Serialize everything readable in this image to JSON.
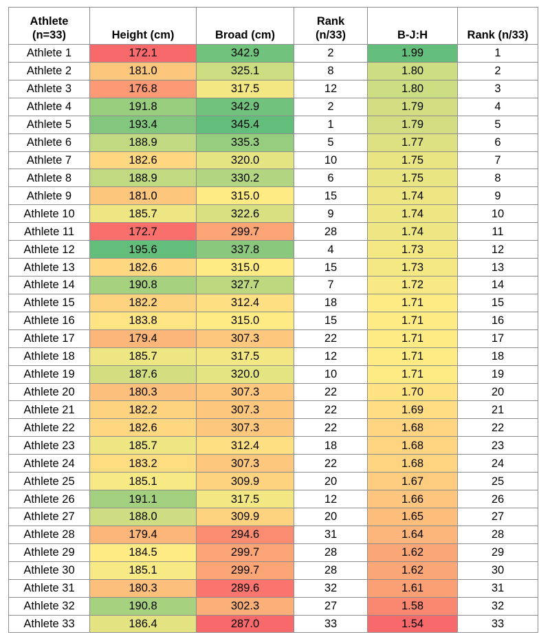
{
  "chart_data": {
    "type": "table",
    "columns": [
      "Athlete\n(n=33)",
      "Height (cm)",
      "Broad (cm)",
      "Rank\n(n/33)",
      "B-J:H",
      "Rank (n/33)"
    ],
    "column_headers": {
      "athlete": [
        "Athlete",
        "(n=33)"
      ],
      "height": "Height (cm)",
      "broad": "Broad (cm)",
      "rank1": [
        "Rank",
        "(n/33)"
      ],
      "ratio": "B-J:H",
      "rank2": "Rank (n/33)"
    },
    "rows": [
      {
        "athlete": "Athlete 1",
        "height": "172.1",
        "broad": "342.9",
        "rank1": "2",
        "ratio": "1.99",
        "rank2": "1"
      },
      {
        "athlete": "Athlete 2",
        "height": "181.0",
        "broad": "325.1",
        "rank1": "8",
        "ratio": "1.80",
        "rank2": "2"
      },
      {
        "athlete": "Athlete 3",
        "height": "176.8",
        "broad": "317.5",
        "rank1": "12",
        "ratio": "1.80",
        "rank2": "3"
      },
      {
        "athlete": "Athlete 4",
        "height": "191.8",
        "broad": "342.9",
        "rank1": "2",
        "ratio": "1.79",
        "rank2": "4"
      },
      {
        "athlete": "Athlete 5",
        "height": "193.4",
        "broad": "345.4",
        "rank1": "1",
        "ratio": "1.79",
        "rank2": "5"
      },
      {
        "athlete": "Athlete 6",
        "height": "188.9",
        "broad": "335.3",
        "rank1": "5",
        "ratio": "1.77",
        "rank2": "6"
      },
      {
        "athlete": "Athlete 7",
        "height": "182.6",
        "broad": "320.0",
        "rank1": "10",
        "ratio": "1.75",
        "rank2": "7"
      },
      {
        "athlete": "Athlete 8",
        "height": "188.9",
        "broad": "330.2",
        "rank1": "6",
        "ratio": "1.75",
        "rank2": "8"
      },
      {
        "athlete": "Athlete 9",
        "height": "181.0",
        "broad": "315.0",
        "rank1": "15",
        "ratio": "1.74",
        "rank2": "9"
      },
      {
        "athlete": "Athlete 10",
        "height": "185.7",
        "broad": "322.6",
        "rank1": "9",
        "ratio": "1.74",
        "rank2": "10"
      },
      {
        "athlete": "Athlete 11",
        "height": "172.7",
        "broad": "299.7",
        "rank1": "28",
        "ratio": "1.74",
        "rank2": "11"
      },
      {
        "athlete": "Athlete 12",
        "height": "195.6",
        "broad": "337.8",
        "rank1": "4",
        "ratio": "1.73",
        "rank2": "12"
      },
      {
        "athlete": "Athlete 13",
        "height": "182.6",
        "broad": "315.0",
        "rank1": "15",
        "ratio": "1.73",
        "rank2": "13"
      },
      {
        "athlete": "Athlete 14",
        "height": "190.8",
        "broad": "327.7",
        "rank1": "7",
        "ratio": "1.72",
        "rank2": "14"
      },
      {
        "athlete": "Athlete 15",
        "height": "182.2",
        "broad": "312.4",
        "rank1": "18",
        "ratio": "1.71",
        "rank2": "15"
      },
      {
        "athlete": "Athlete 16",
        "height": "183.8",
        "broad": "315.0",
        "rank1": "15",
        "ratio": "1.71",
        "rank2": "16"
      },
      {
        "athlete": "Athlete 17",
        "height": "179.4",
        "broad": "307.3",
        "rank1": "22",
        "ratio": "1.71",
        "rank2": "17"
      },
      {
        "athlete": "Athlete 18",
        "height": "185.7",
        "broad": "317.5",
        "rank1": "12",
        "ratio": "1.71",
        "rank2": "18"
      },
      {
        "athlete": "Athlete 19",
        "height": "187.6",
        "broad": "320.0",
        "rank1": "10",
        "ratio": "1.71",
        "rank2": "19"
      },
      {
        "athlete": "Athlete 20",
        "height": "180.3",
        "broad": "307.3",
        "rank1": "22",
        "ratio": "1.70",
        "rank2": "20"
      },
      {
        "athlete": "Athlete 21",
        "height": "182.2",
        "broad": "307.3",
        "rank1": "22",
        "ratio": "1.69",
        "rank2": "21"
      },
      {
        "athlete": "Athlete 22",
        "height": "182.6",
        "broad": "307.3",
        "rank1": "22",
        "ratio": "1.68",
        "rank2": "22"
      },
      {
        "athlete": "Athlete 23",
        "height": "185.7",
        "broad": "312.4",
        "rank1": "18",
        "ratio": "1.68",
        "rank2": "23"
      },
      {
        "athlete": "Athlete 24",
        "height": "183.2",
        "broad": "307.3",
        "rank1": "22",
        "ratio": "1.68",
        "rank2": "24"
      },
      {
        "athlete": "Athlete 25",
        "height": "185.1",
        "broad": "309.9",
        "rank1": "20",
        "ratio": "1.67",
        "rank2": "25"
      },
      {
        "athlete": "Athlete 26",
        "height": "191.1",
        "broad": "317.5",
        "rank1": "12",
        "ratio": "1.66",
        "rank2": "26"
      },
      {
        "athlete": "Athlete 27",
        "height": "188.0",
        "broad": "309.9",
        "rank1": "20",
        "ratio": "1.65",
        "rank2": "27"
      },
      {
        "athlete": "Athlete 28",
        "height": "179.4",
        "broad": "294.6",
        "rank1": "31",
        "ratio": "1.64",
        "rank2": "28"
      },
      {
        "athlete": "Athlete 29",
        "height": "184.5",
        "broad": "299.7",
        "rank1": "28",
        "ratio": "1.62",
        "rank2": "29"
      },
      {
        "athlete": "Athlete 30",
        "height": "185.1",
        "broad": "299.7",
        "rank1": "28",
        "ratio": "1.62",
        "rank2": "30"
      },
      {
        "athlete": "Athlete 31",
        "height": "180.3",
        "broad": "289.6",
        "rank1": "32",
        "ratio": "1.61",
        "rank2": "31"
      },
      {
        "athlete": "Athlete 32",
        "height": "190.8",
        "broad": "302.3",
        "rank1": "27",
        "ratio": "1.58",
        "rank2": "32"
      },
      {
        "athlete": "Athlete 33",
        "height": "186.4",
        "broad": "287.0",
        "rank1": "33",
        "ratio": "1.54",
        "rank2": "33"
      }
    ],
    "color_scale": {
      "low": "#f8696b",
      "mid": "#ffeb84",
      "high": "#63be7b",
      "applies_to": [
        "height",
        "broad",
        "ratio"
      ]
    },
    "grid": true
  }
}
